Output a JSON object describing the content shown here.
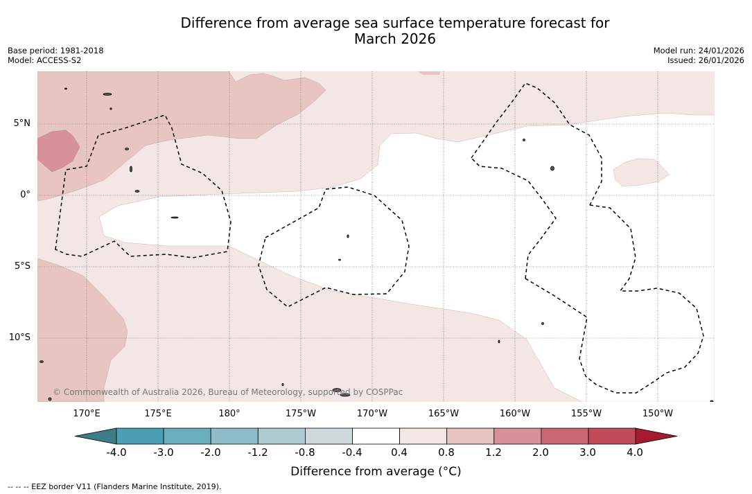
{
  "header": {
    "title_line1": "Difference from average sea surface temperature forecast for",
    "title_line2": "March 2026",
    "base_period": "Base period: 1981-2018",
    "model": "Model: ACCESS-S2",
    "model_run": "Model run: 24/01/2026",
    "issued": "Issued: 26/01/2026"
  },
  "map": {
    "lon_labels": [
      "170°E",
      "175°E",
      "180°",
      "175°W",
      "170°W",
      "165°W",
      "160°W",
      "155°W",
      "150°W"
    ],
    "lat_labels": [
      "5°N",
      "0°",
      "5°S",
      "10°S"
    ],
    "copyright": "© Commonwealth of Australia 2026, Bureau of Meteorology, supported by COSPPac"
  },
  "colorbar": {
    "tick_labels": [
      "-4.0",
      "-3.0",
      "-2.0",
      "-1.2",
      "-0.8",
      "-0.4",
      "0.4",
      "0.8",
      "1.2",
      "2.0",
      "3.0",
      "4.0"
    ],
    "colors": [
      "#4a9fb2",
      "#6aaebd",
      "#8ebcc7",
      "#adcbd1",
      "#cdd9db",
      "#ffffff",
      "#f4e6e4",
      "#e7c6c1",
      "#d69298",
      "#c86672",
      "#c04c5a"
    ],
    "min_extend_color": "#3e7d87",
    "max_extend_color": "#a6192e",
    "title": "Difference from average (°C)"
  },
  "legend": {
    "eez_text": "-- -- -- EEZ border V11 (Flanders Marine Institute, 2019)."
  }
}
